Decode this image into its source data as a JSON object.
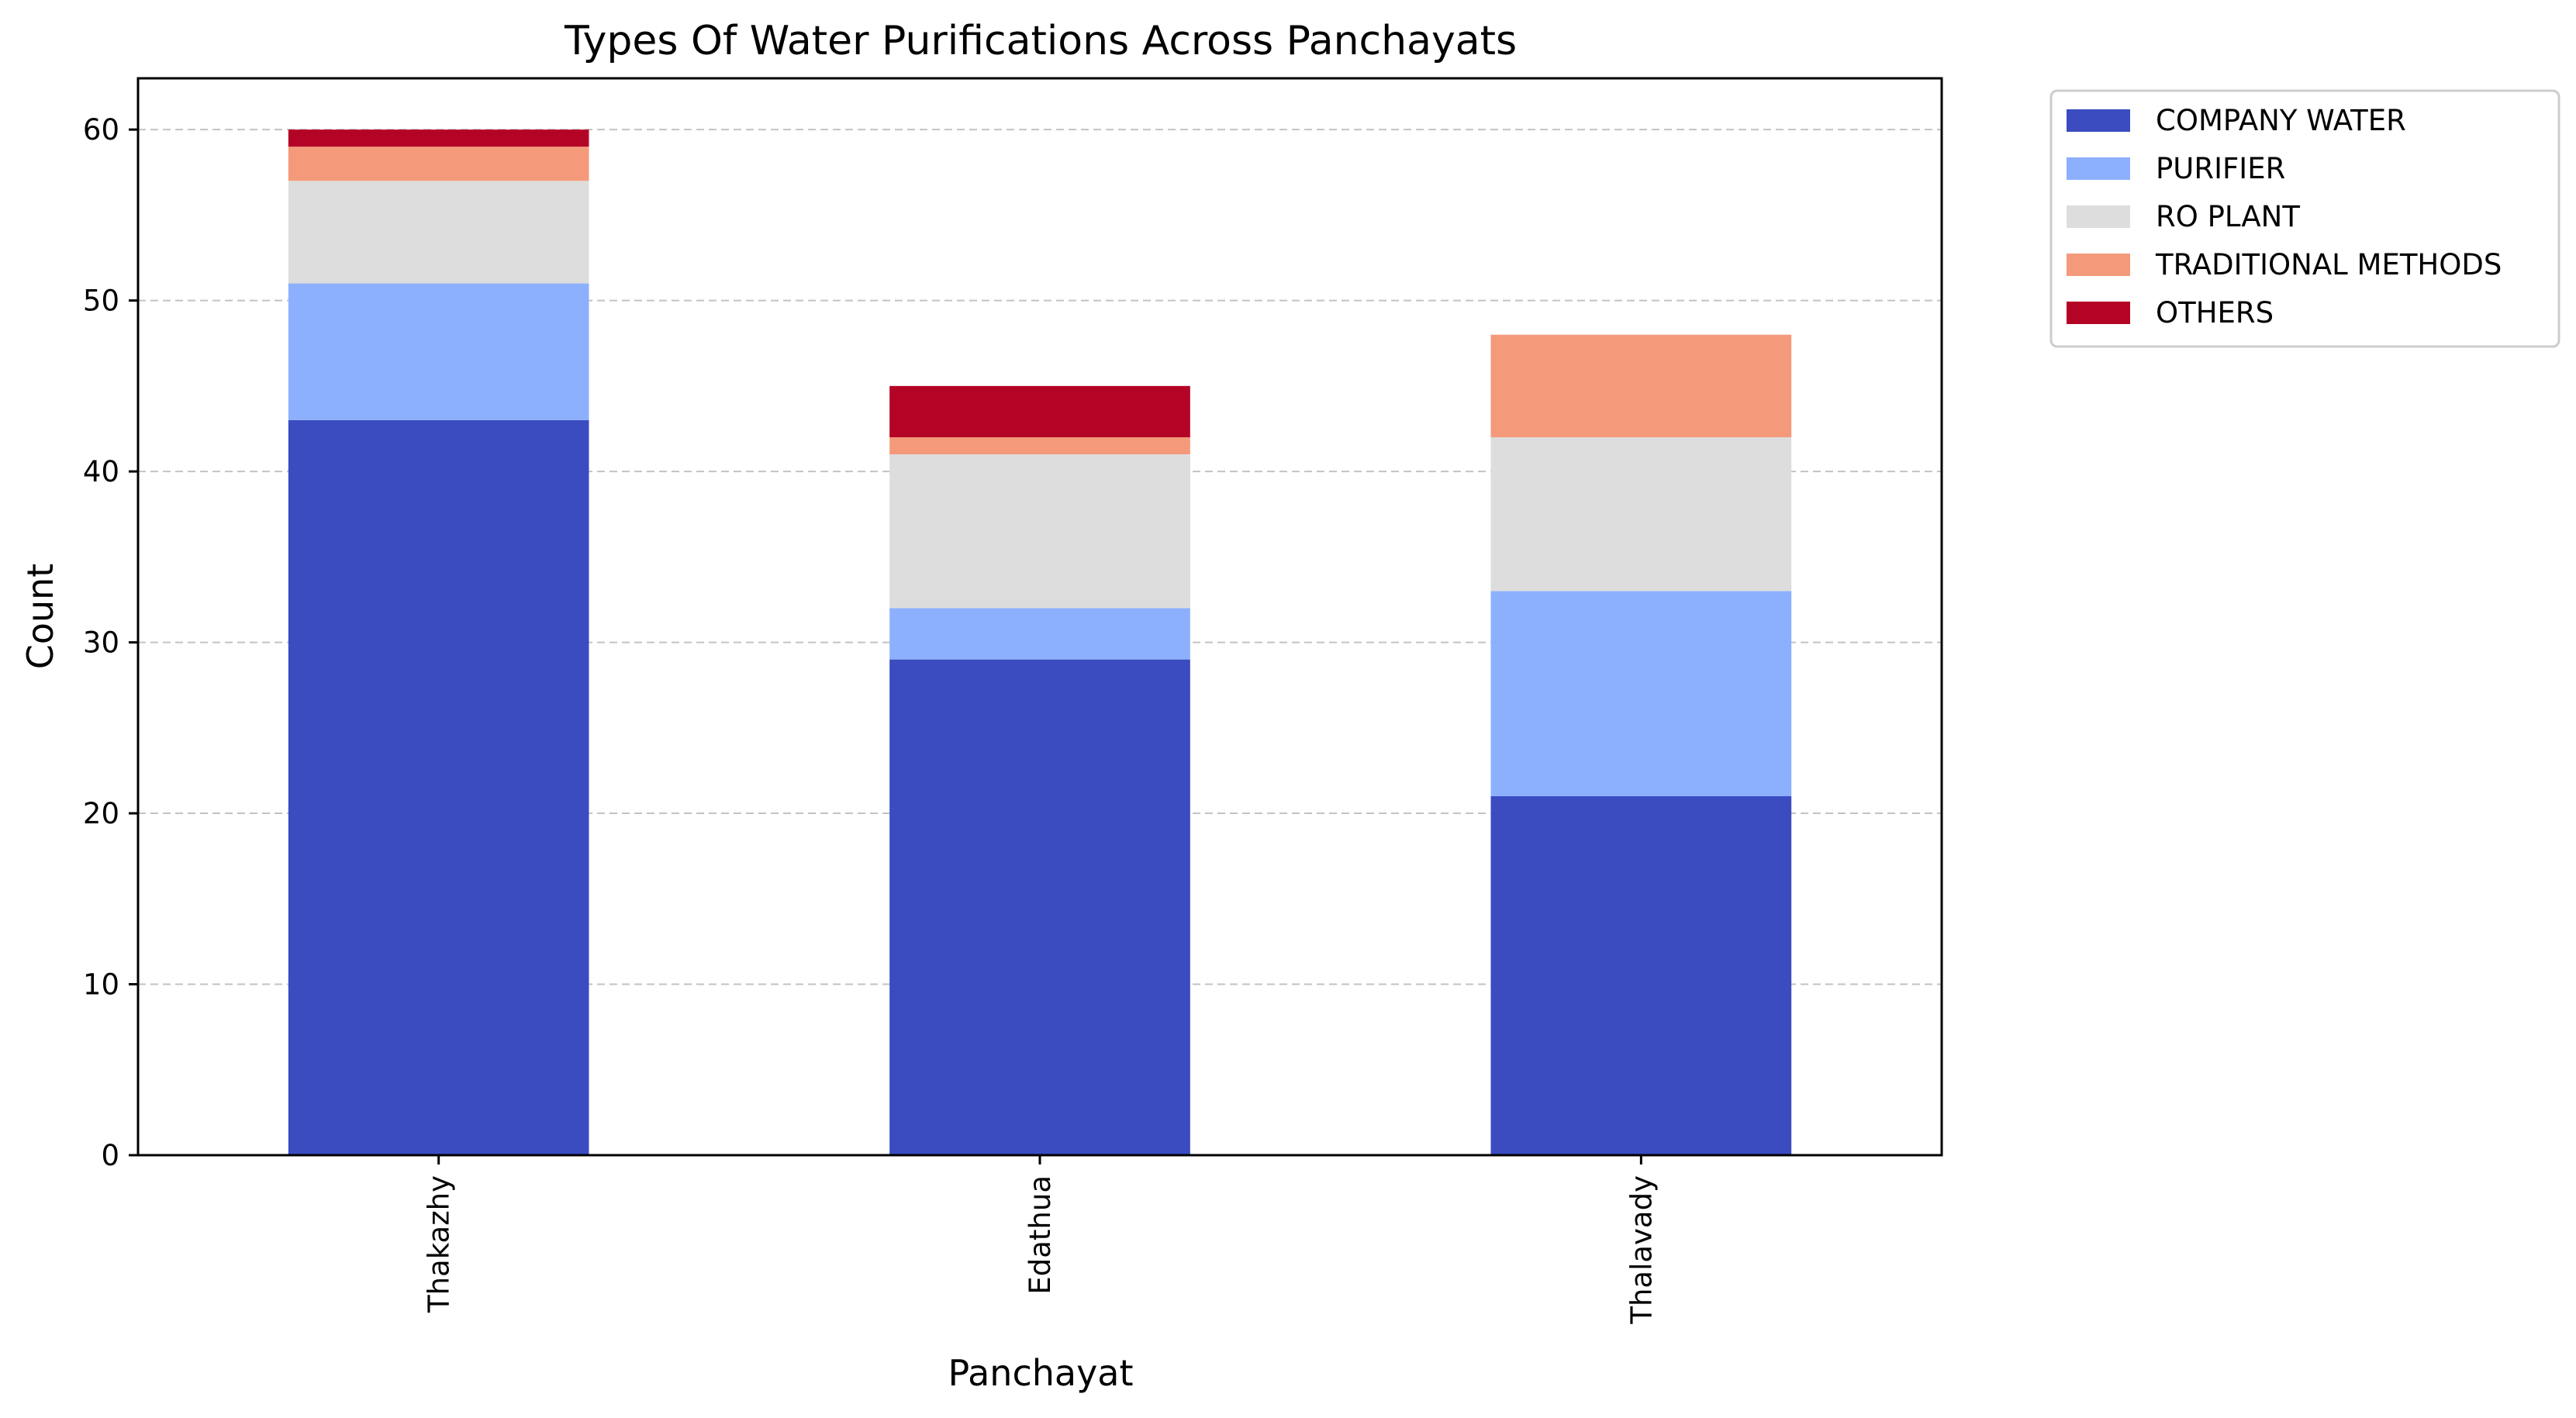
{
  "chart_data": {
    "type": "bar",
    "stacked": true,
    "title": "Types Of Water Purifications Across Panchayats",
    "xlabel": "Panchayat",
    "ylabel": "Count",
    "categories": [
      "Thakazhy",
      "Edathua",
      "Thalavady"
    ],
    "series": [
      {
        "name": "COMPANY WATER",
        "color": "#3b4cc0",
        "values": [
          43,
          29,
          21
        ]
      },
      {
        "name": "PURIFIER",
        "color": "#8db0fe",
        "values": [
          8,
          3,
          12
        ]
      },
      {
        "name": "RO PLANT",
        "color": "#dddddd",
        "values": [
          6,
          9,
          9
        ]
      },
      {
        "name": "TRADITIONAL METHODS",
        "color": "#f49a7b",
        "values": [
          2,
          1,
          6
        ]
      },
      {
        "name": "OTHERS",
        "color": "#b40426",
        "values": [
          1,
          3,
          0
        ]
      }
    ],
    "ylim": [
      0,
      63
    ],
    "yticks": [
      0,
      10,
      20,
      30,
      40,
      50,
      60
    ],
    "grid": "y-dashed",
    "legend_position": "outside-top-right"
  }
}
